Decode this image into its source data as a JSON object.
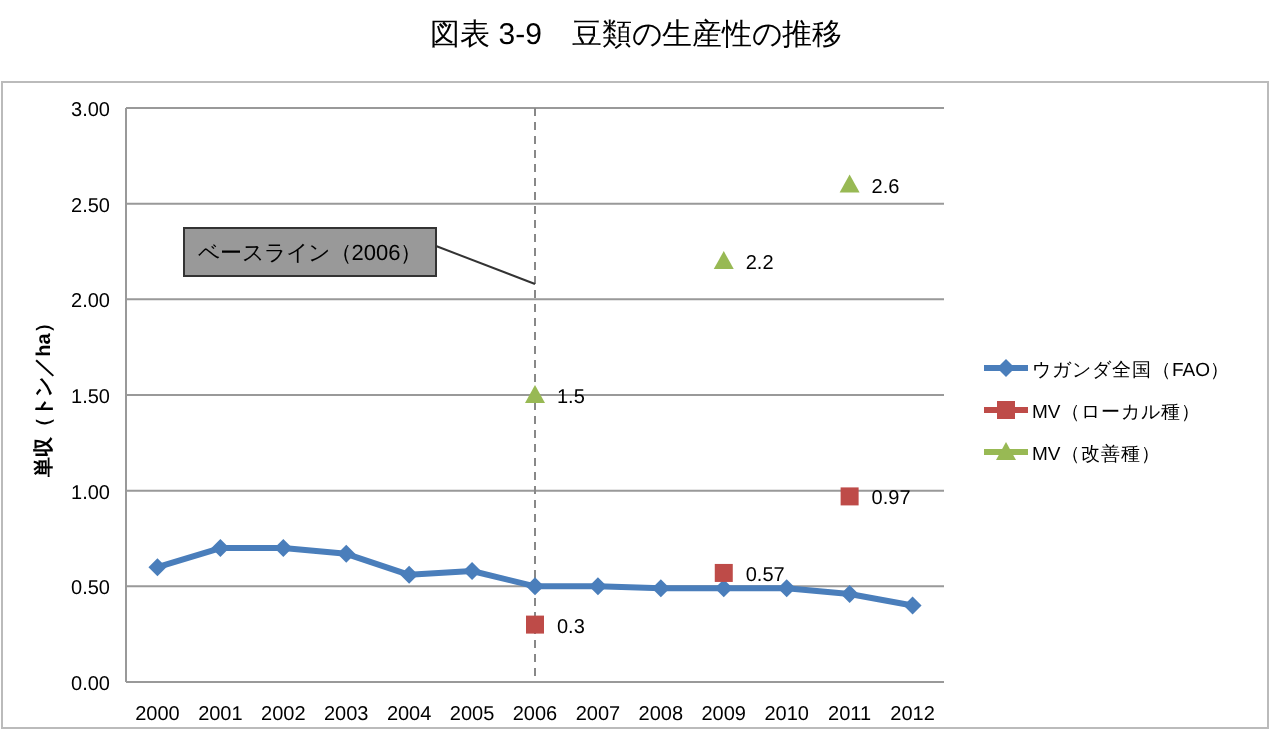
{
  "chart_data": {
    "type": "line",
    "title": "図表 3-9　豆類の生産性の推移",
    "ylabel": "単収（トン／ha）",
    "categories": [
      "2000",
      "2001",
      "2002",
      "2003",
      "2004",
      "2005",
      "2006",
      "2007",
      "2008",
      "2009",
      "2010",
      "2011",
      "2012"
    ],
    "series": [
      {
        "name": "ウガンダ全国（FAO）",
        "type": "line",
        "color": "#4a7ebb",
        "marker": "diamond",
        "values": [
          0.6,
          0.7,
          0.7,
          0.67,
          0.56,
          0.58,
          0.5,
          0.5,
          0.49,
          0.49,
          0.49,
          0.46,
          0.4
        ]
      },
      {
        "name": "MV（ローカル種）",
        "type": "scatter",
        "color": "#be4b48",
        "marker": "square",
        "values": [
          null,
          null,
          null,
          null,
          null,
          null,
          0.3,
          null,
          null,
          0.57,
          null,
          0.97,
          null
        ],
        "value_labels": [
          null,
          null,
          null,
          null,
          null,
          null,
          "0.3",
          null,
          null,
          "0.57",
          null,
          "0.97",
          null
        ]
      },
      {
        "name": "MV（改善種）",
        "type": "scatter",
        "color": "#98b954",
        "marker": "triangle",
        "values": [
          null,
          null,
          null,
          null,
          null,
          null,
          1.5,
          null,
          null,
          2.2,
          null,
          2.6,
          null
        ],
        "value_labels": [
          null,
          null,
          null,
          null,
          null,
          null,
          "1.5",
          null,
          null,
          "2.2",
          null,
          "2.6",
          null
        ]
      }
    ],
    "ylim": [
      0,
      3
    ],
    "yticks": [
      {
        "value": 0,
        "label": "0.00"
      },
      {
        "value": 0.5,
        "label": "0.50"
      },
      {
        "value": 1,
        "label": "1.00"
      },
      {
        "value": 1.5,
        "label": "1.50"
      },
      {
        "value": 2,
        "label": "2.00"
      },
      {
        "value": 2.5,
        "label": "2.50"
      },
      {
        "value": 3,
        "label": "3.00"
      }
    ],
    "grid": "y",
    "legend": "right",
    "ref_lines": [
      {
        "axis": "x",
        "value": "2006",
        "label": "ベースライン（2006）",
        "color": "#888888",
        "line_style": "dashed"
      }
    ]
  }
}
